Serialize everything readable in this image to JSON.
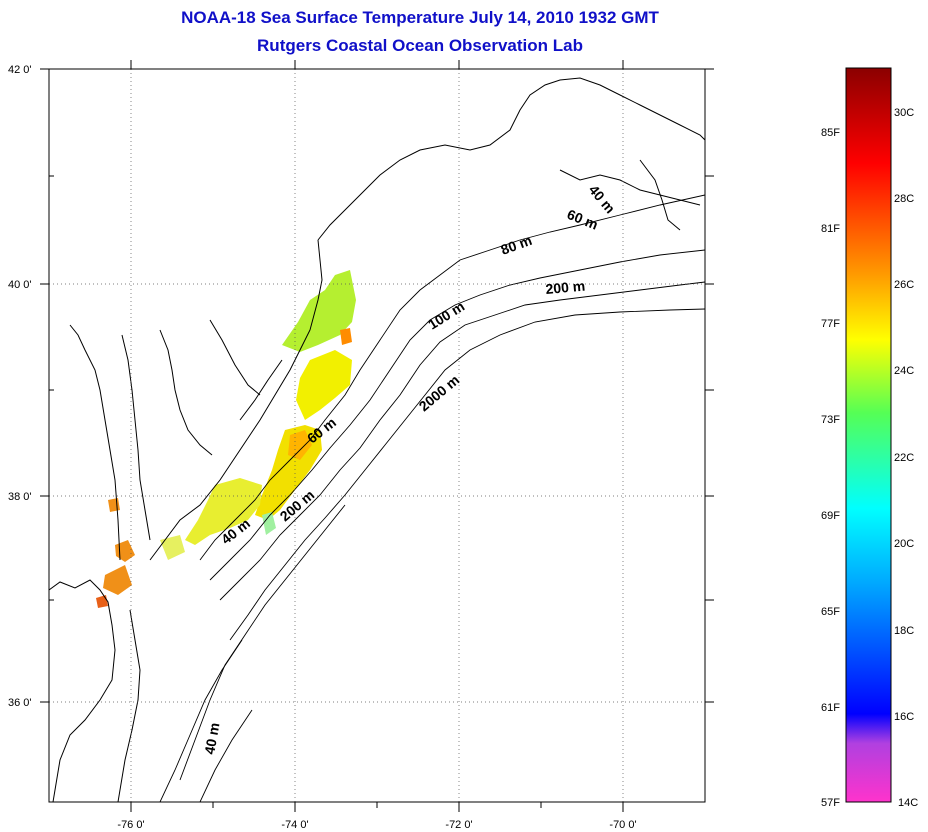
{
  "header": {
    "title": "NOAA-18 Sea Surface Temperature July 14, 2010 1932 GMT",
    "subtitle": "Rutgers Coastal Ocean Observation Lab"
  },
  "map": {
    "lon_range": [
      -77,
      -69
    ],
    "lat_range": [
      35,
      42
    ],
    "lat_ticks": [
      {
        "value": 42,
        "label": "42 0'"
      },
      {
        "value": 40,
        "label": "40 0'"
      },
      {
        "value": 38,
        "label": "38 0'"
      },
      {
        "value": 36,
        "label": "36 0'"
      }
    ],
    "lon_ticks": [
      {
        "value": -76,
        "label": "-76 0'"
      },
      {
        "value": -74,
        "label": "-74 0'"
      },
      {
        "value": -72,
        "label": "-72 0'"
      },
      {
        "value": -70,
        "label": "-70 0'"
      }
    ],
    "contour_labels": [
      "40 m",
      "60 m",
      "80 m",
      "200 m",
      "100 m",
      "2000 m",
      "60 m",
      "200 m",
      "40 m",
      "40 m"
    ],
    "sst_range_c": [
      14,
      31
    ]
  },
  "colorbar": {
    "fahrenheit_labels": [
      "85F",
      "81F",
      "77F",
      "73F",
      "69F",
      "65F",
      "61F",
      "57F"
    ],
    "celsius_labels": [
      "30C",
      "28C",
      "26C",
      "24C",
      "22C",
      "20C",
      "18C",
      "16C",
      "14C"
    ],
    "colors": [
      "#ff33cc",
      "#8833ee",
      "#0000ff",
      "#00aaff",
      "#00ffff",
      "#55ff55",
      "#ffff00",
      "#ff9900",
      "#ff0000",
      "#aa0000"
    ]
  }
}
